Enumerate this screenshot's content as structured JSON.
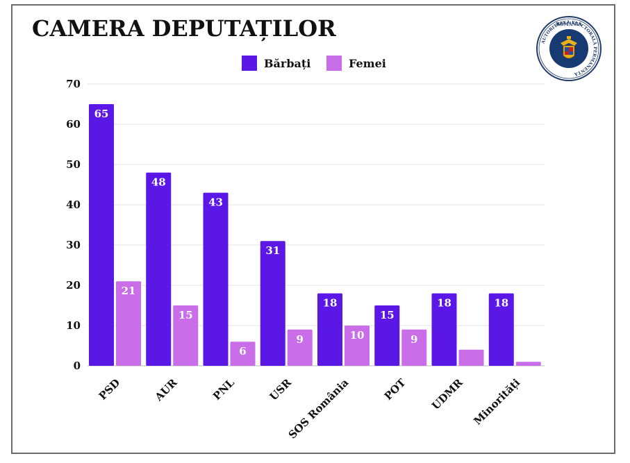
{
  "chart_data": {
    "type": "bar",
    "title": "CAMERA DEPUTAȚILOR",
    "categories": [
      "PSD",
      "AUR",
      "PNL",
      "USR",
      "SOS România",
      "POT",
      "UDMR",
      "Minorități"
    ],
    "series": [
      {
        "name": "Bărbați",
        "color": "#5b17e6",
        "values": [
          65,
          48,
          43,
          31,
          18,
          15,
          18,
          18
        ],
        "labels": [
          "65",
          "48",
          "43",
          "31",
          "18",
          "15",
          "18",
          "18"
        ]
      },
      {
        "name": "Femei",
        "color": "#c96ee8",
        "values": [
          21,
          15,
          6,
          9,
          10,
          9,
          4,
          1
        ],
        "labels": [
          "21",
          "15",
          "6",
          "9",
          "10",
          "9",
          "",
          ""
        ]
      }
    ],
    "yticks": [
      "0",
      "10",
      "20",
      "30",
      "40",
      "50",
      "60",
      "70"
    ],
    "ylim": [
      0,
      70
    ],
    "xlabel": "",
    "ylabel": "",
    "grid": true,
    "legend_position": "top-center"
  },
  "seal": {
    "top_text": "ROMÂNIA",
    "ring_text": "AUTORITATEA ELECTORALĂ PERMANENTĂ"
  }
}
